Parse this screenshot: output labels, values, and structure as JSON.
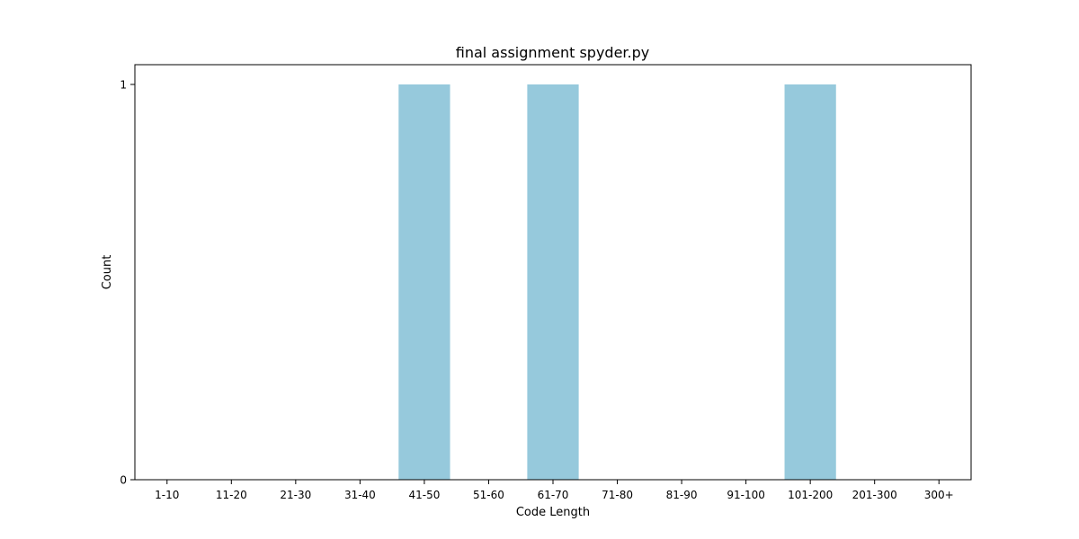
{
  "chart_data": {
    "type": "bar",
    "title": "final assignment spyder.py",
    "xlabel": "Code Length",
    "ylabel": "Count",
    "categories": [
      "1-10",
      "11-20",
      "21-30",
      "31-40",
      "41-50",
      "51-60",
      "61-70",
      "71-80",
      "81-90",
      "91-100",
      "101-200",
      "201-300",
      "300+"
    ],
    "values": [
      0,
      0,
      0,
      0,
      1,
      0,
      1,
      0,
      0,
      0,
      1,
      0,
      0
    ],
    "ylim": [
      0,
      1.05
    ],
    "yticks": [
      0,
      1
    ],
    "grid": false,
    "bar_color": "#96c9dc"
  }
}
